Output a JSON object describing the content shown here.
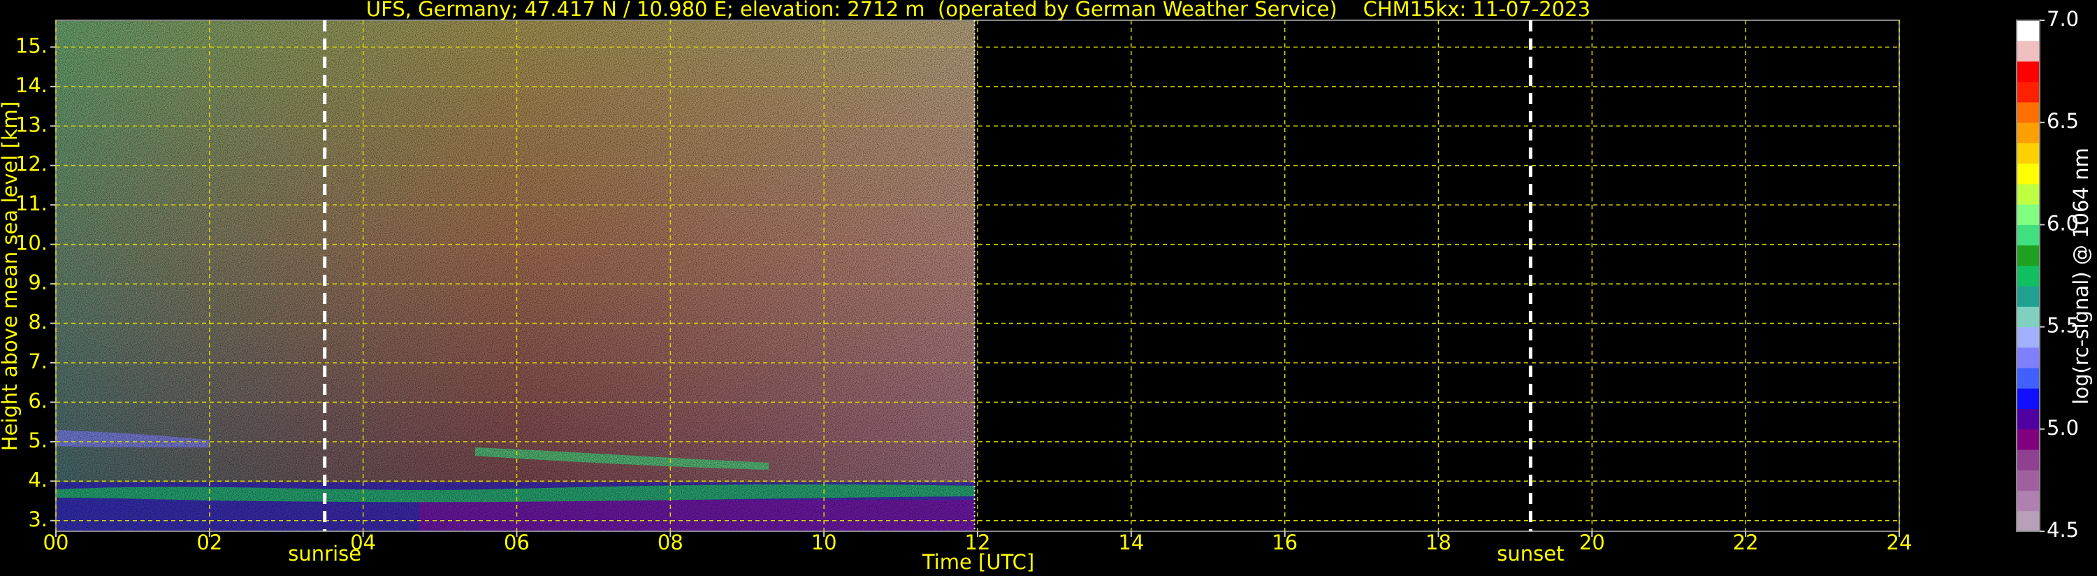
{
  "chart_data": {
    "type": "heatmap",
    "title": "UFS, Germany; 47.417 N / 10.980 E; elevation: 2712 m  (operated by German Weather Service)    CHM15kx: 11-07-2023",
    "x_label": "Time [UTC]",
    "y_label": "Height above mean sea level [km]",
    "xlim": [
      0,
      24
    ],
    "xticks": [
      {
        "value": 0,
        "label": "00"
      },
      {
        "value": 2,
        "label": "02"
      },
      {
        "value": 4,
        "label": "04"
      },
      {
        "value": 6,
        "label": "06"
      },
      {
        "value": 8,
        "label": "08"
      },
      10,
      12,
      14,
      16,
      18,
      20,
      22,
      24
    ],
    "ylim": [
      2.73,
      15.68
    ],
    "yticks": [
      {
        "value": 3,
        "label": "3."
      },
      {
        "value": 4,
        "label": "4."
      },
      {
        "value": 5,
        "label": "5."
      },
      {
        "value": 6,
        "label": "6."
      },
      {
        "value": 7,
        "label": "7."
      },
      {
        "value": 8,
        "label": "8."
      },
      {
        "value": 9,
        "label": "9."
      },
      {
        "value": 10,
        "label": "10."
      },
      {
        "value": 11,
        "label": "11."
      },
      {
        "value": 12,
        "label": "12."
      },
      {
        "value": 13,
        "label": "13."
      },
      {
        "value": 14,
        "label": "14."
      },
      {
        "value": 15,
        "label": "15."
      }
    ],
    "grid": true,
    "grid_color": "#d8d800",
    "data_end_x": 11.96,
    "annotations": [
      {
        "text": "sunrise",
        "x": 3.5
      },
      {
        "text": "sunset",
        "x": 19.2
      }
    ],
    "colorbar": {
      "label": "log(rc-signal) @ 1064 nm",
      "zlim": [
        4.5,
        7.0
      ],
      "zticks": [
        4.5,
        {
          "value": 5,
          "label": "5.0"
        },
        5.5,
        {
          "value": 6,
          "label": "6.0"
        },
        6.5,
        {
          "value": 7,
          "label": "7.0"
        }
      ],
      "colors": [
        "#b8a0b8",
        "#b080b0",
        "#a060a0",
        "#904090",
        "#800080",
        "#5000a0",
        "#1010ff",
        "#4060ff",
        "#8080ff",
        "#a0b0ff",
        "#80d0c0",
        "#20a090",
        "#10c060",
        "#20a020",
        "#40e080",
        "#80ff80",
        "#c0ff40",
        "#ffff00",
        "#ffd000",
        "#ffa000",
        "#ff7000",
        "#ff2000",
        "#ff0000",
        "#f0c0c0",
        "#ffffff"
      ]
    }
  }
}
